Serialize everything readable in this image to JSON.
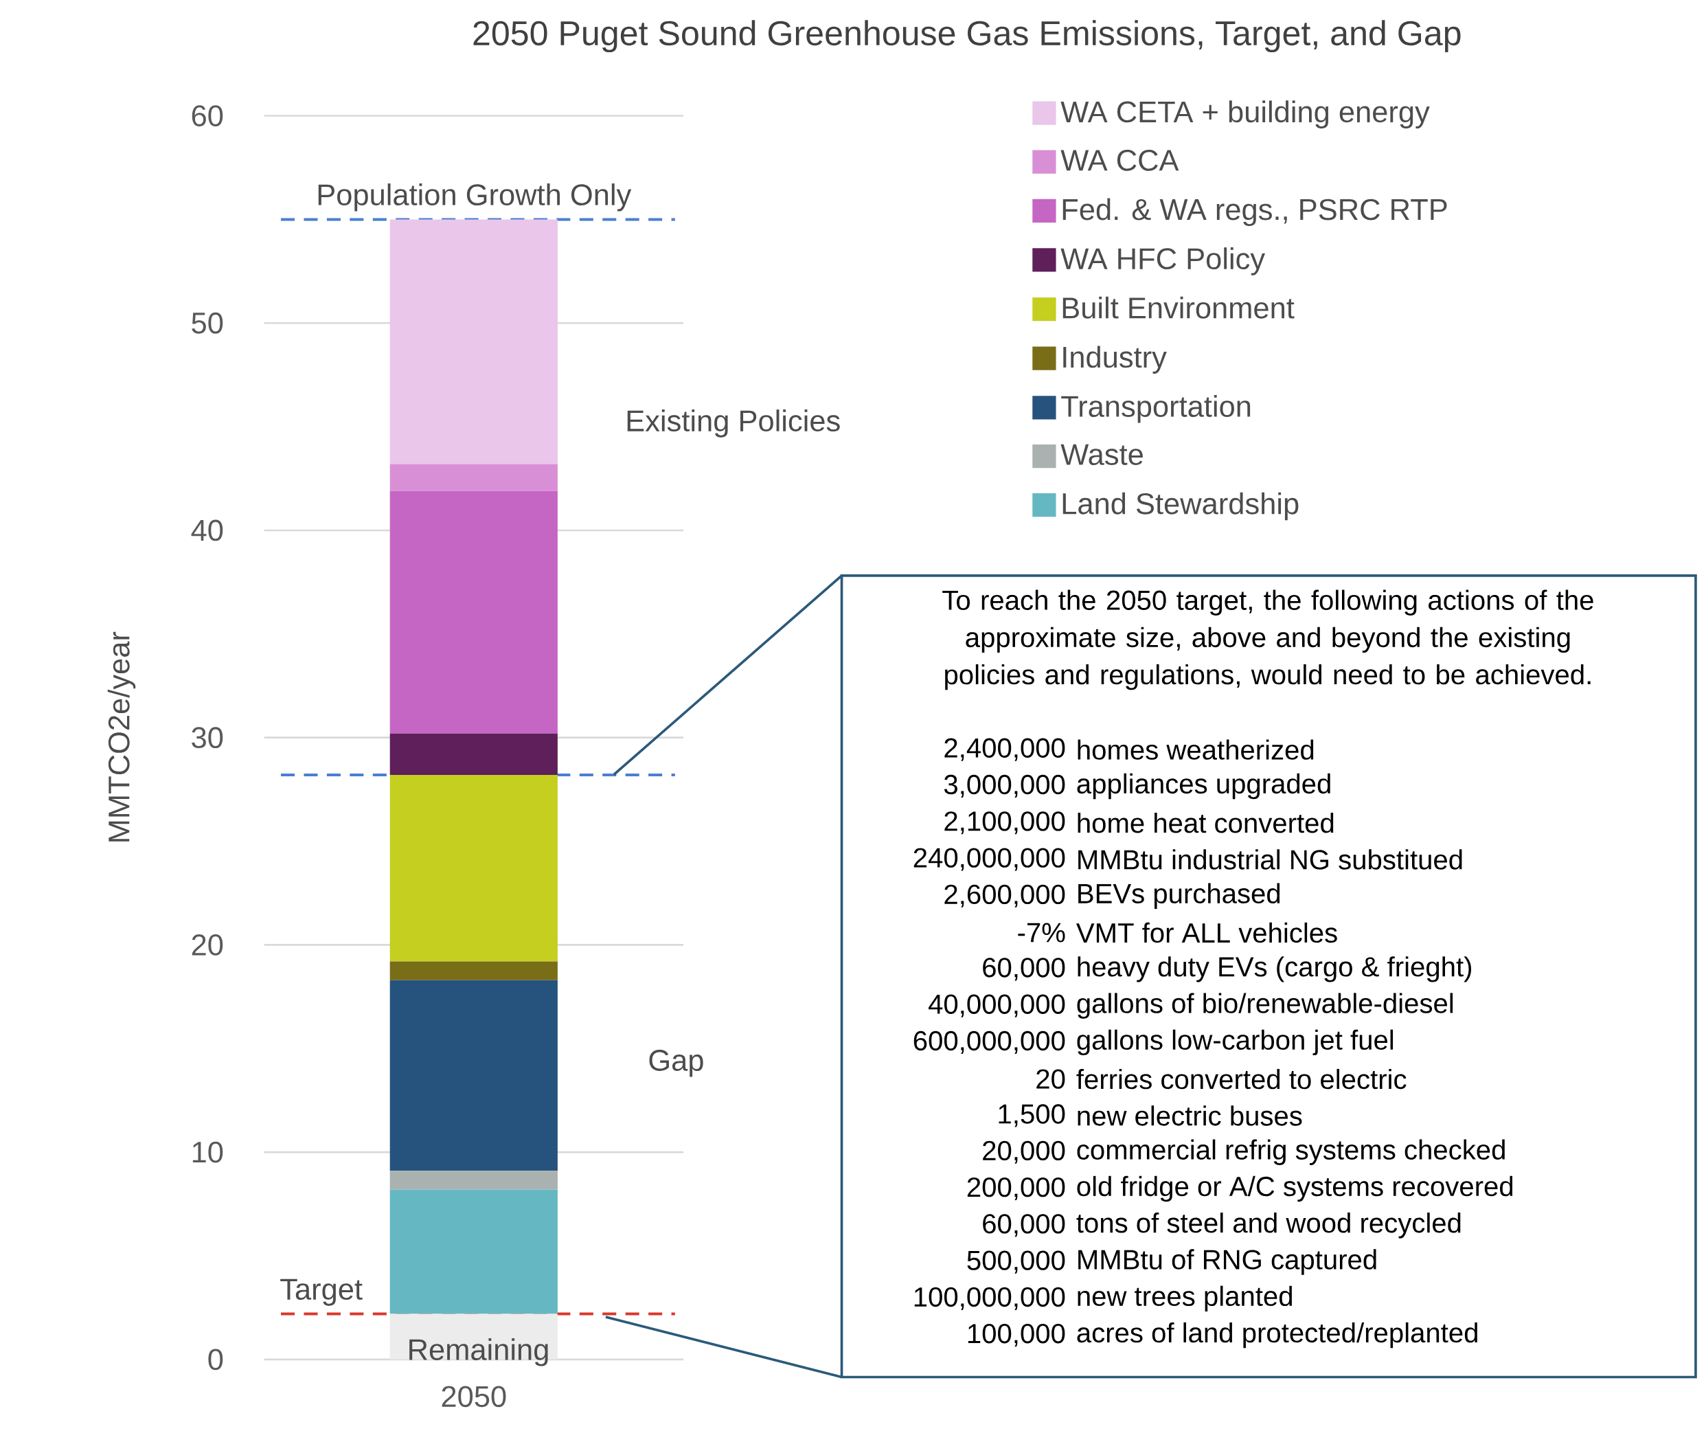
{
  "chart_data": {
    "type": "bar",
    "title": "2050 Puget Sound Greenhouse Gas Emissions, Target, and Gap",
    "ylabel": "MMTCO2e/year",
    "categories": [
      "2050"
    ],
    "stacked": true,
    "ylim": [
      0,
      60
    ],
    "yticks": [
      0,
      10,
      20,
      30,
      40,
      50,
      60
    ],
    "grid": "y",
    "legend": "top right",
    "series": [
      {
        "name": "Remaining",
        "color": "#ececec",
        "values": [
          2.2
        ]
      },
      {
        "name": "Land Stewardship",
        "color": "#65b8c2",
        "values": [
          6.0
        ]
      },
      {
        "name": "Waste",
        "color": "#a9b2b0",
        "values": [
          0.9
        ]
      },
      {
        "name": "Transportation",
        "color": "#26537e",
        "values": [
          9.2
        ]
      },
      {
        "name": "Industry",
        "color": "#7a6d18",
        "values": [
          0.9
        ]
      },
      {
        "name": "Built Environment",
        "color": "#c4cf20",
        "values": [
          9.0
        ]
      },
      {
        "name": "WA HFC Policy",
        "color": "#5e1f5a",
        "values": [
          2.0
        ]
      },
      {
        "name": "Fed. & WA regs., PSRC RTP",
        "color": "#c566c4",
        "values": [
          11.7
        ]
      },
      {
        "name": "WA CCA",
        "color": "#d98fd6",
        "values": [
          1.3
        ]
      },
      {
        "name": "WA CETA + building energy",
        "color": "#e9c6ea",
        "values": [
          11.8
        ]
      }
    ],
    "ref_lines": [
      {
        "axis": "y",
        "value": 55,
        "label": "Population Growth Only",
        "color": "#4a7fd0",
        "line_style": "dashed"
      },
      {
        "axis": "y",
        "value": 28.2,
        "color": "#4a7fd0",
        "line_style": "dashed"
      },
      {
        "axis": "y",
        "value": 2.2,
        "label": "Target",
        "color": "#d9382c",
        "line_style": "dashed"
      }
    ],
    "annotations": [
      "Existing Policies",
      "Gap",
      "To reach the 2050 target, the following actions of the approximate size, above and beyond the existing policies and regulations, would need to be achieved.",
      "2,400,000",
      "homes weatherized",
      "3,000,000",
      "appliances upgraded",
      "2,100,000",
      "home heat converted",
      "240,000,000",
      "MMBtu industrial NG substitued",
      "2,600,000",
      "BEVs purchased",
      "-7%",
      "VMT for ALL vehicles",
      "60,000",
      "heavy duty EVs (cargo & frieght)",
      "40,000,000",
      "gallons of bio/renewable-diesel",
      "600,000,000",
      "gallons low-carbon jet fuel",
      "20",
      "ferries converted to electric",
      "1,500",
      "new electric buses",
      "20,000",
      "commercial refrig systems checked",
      "200,000",
      "old fridge or A/C systems recovered",
      "60,000",
      "tons of steel and wood recycled",
      "500,000",
      "MMBtu of RNG captured",
      "100,000,000",
      "new trees planted",
      "100,000",
      "acres of land protected/replanted"
    ]
  }
}
